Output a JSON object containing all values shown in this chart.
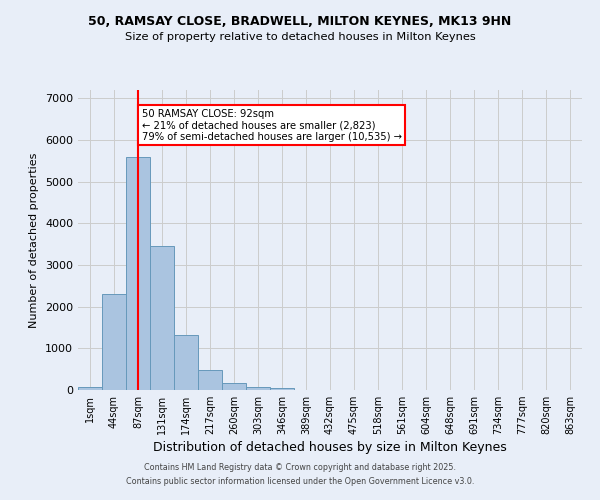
{
  "title_line1": "50, RAMSAY CLOSE, BRADWELL, MILTON KEYNES, MK13 9HN",
  "title_line2": "Size of property relative to detached houses in Milton Keynes",
  "xlabel": "Distribution of detached houses by size in Milton Keynes",
  "ylabel": "Number of detached properties",
  "categories": [
    "1sqm",
    "44sqm",
    "87sqm",
    "131sqm",
    "174sqm",
    "217sqm",
    "260sqm",
    "303sqm",
    "346sqm",
    "389sqm",
    "432sqm",
    "475sqm",
    "518sqm",
    "561sqm",
    "604sqm",
    "648sqm",
    "691sqm",
    "734sqm",
    "777sqm",
    "820sqm",
    "863sqm"
  ],
  "values": [
    70,
    2300,
    5600,
    3450,
    1320,
    480,
    160,
    80,
    55,
    0,
    0,
    0,
    0,
    0,
    0,
    0,
    0,
    0,
    0,
    0,
    0
  ],
  "bar_color": "#aac4e0",
  "bar_edge_color": "#6699bb",
  "grid_color": "#cccccc",
  "bg_color": "#e8eef8",
  "vline_x_idx": 2,
  "vline_color": "red",
  "annotation_line1": "50 RAMSAY CLOSE: 92sqm",
  "annotation_line2": "← 21% of detached houses are smaller (2,823)",
  "annotation_line3": "79% of semi-detached houses are larger (10,535) →",
  "annotation_box_color": "white",
  "annotation_border_color": "red",
  "footer_line1": "Contains HM Land Registry data © Crown copyright and database right 2025.",
  "footer_line2": "Contains public sector information licensed under the Open Government Licence v3.0.",
  "ylim": [
    0,
    7200
  ],
  "yticks": [
    0,
    1000,
    2000,
    3000,
    4000,
    5000,
    6000,
    7000
  ]
}
